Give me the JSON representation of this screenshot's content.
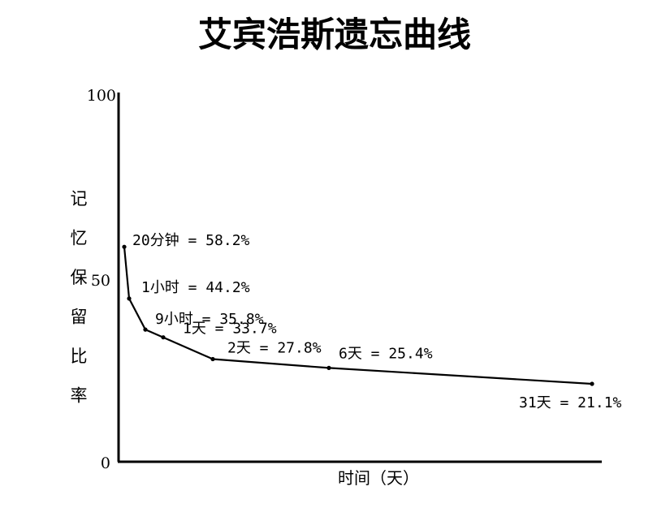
{
  "chart_data": {
    "type": "line",
    "title": "艾宾浩斯遗忘曲线",
    "xlabel": "时间（天）",
    "ylabel": "记忆保留比率",
    "ylim": [
      0,
      100
    ],
    "yticks": [
      "0",
      "50",
      "100"
    ],
    "grid": false,
    "legend": "none",
    "line_color": "#000000",
    "axis_color": "#000000",
    "series": [
      {
        "points": [
          {
            "label": "20分钟 = 58.2%",
            "value": 58.2
          },
          {
            "label": "1小时 = 44.2%",
            "value": 44.2
          },
          {
            "label": "9小时 = 35.8%",
            "value": 35.8
          },
          {
            "label": "1天 = 33.7%",
            "value": 33.7
          },
          {
            "label": "2天 = 27.8%",
            "value": 27.8
          },
          {
            "label": "6天 = 25.4%",
            "value": 25.4
          },
          {
            "label": "31天 = 21.1%",
            "value": 21.1
          }
        ]
      }
    ]
  }
}
